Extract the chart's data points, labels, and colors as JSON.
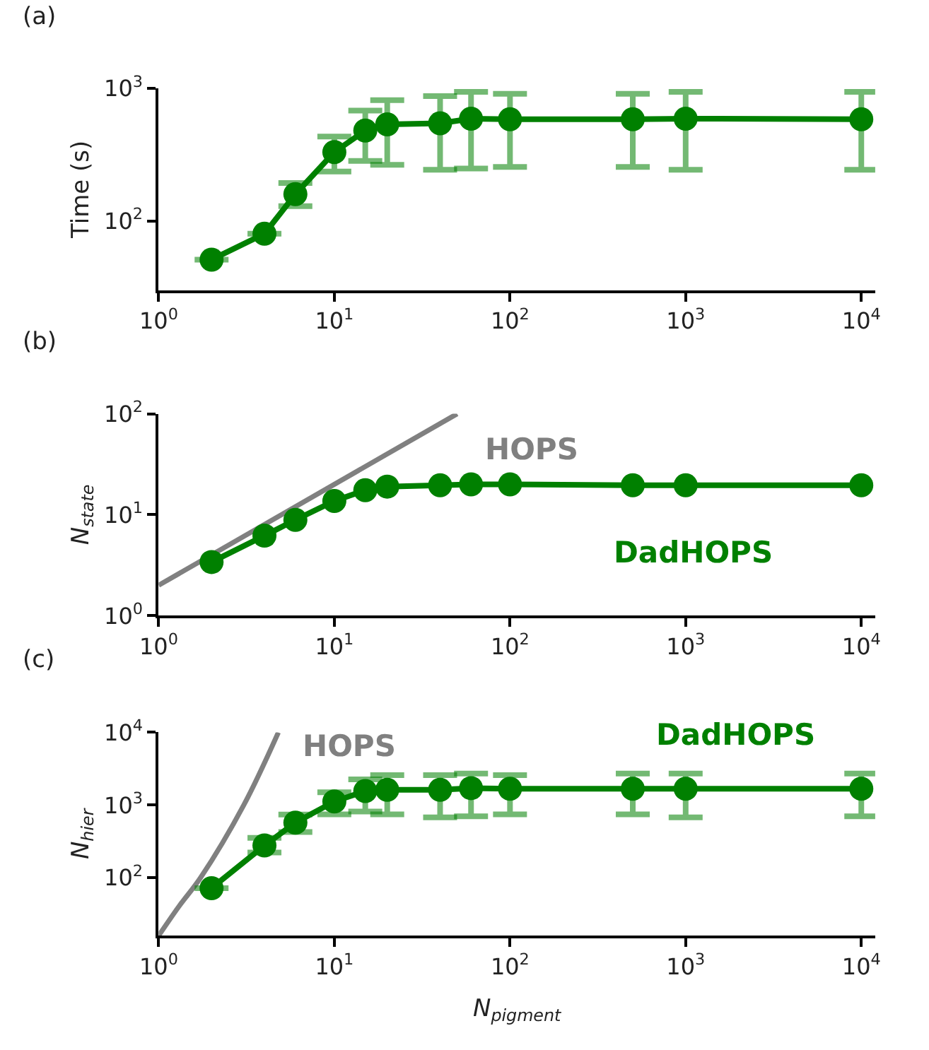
{
  "chart_data": [
    {
      "type": "line",
      "title": "(a)",
      "ylabel": "Time (s)",
      "log": "xy",
      "grid": false,
      "legend": false,
      "marker": "circle",
      "line_style": "solid",
      "xlim": [
        1,
        12000
      ],
      "ylim": [
        30,
        1000
      ],
      "xticks": [
        {
          "value": 1,
          "label": "10$^{0}$"
        },
        {
          "value": 10,
          "label": "10$^{1}$"
        },
        {
          "value": 100,
          "label": "10$^{2}$"
        },
        {
          "value": 1000,
          "label": "10$^{3}$"
        },
        {
          "value": 10000,
          "label": "10$^{4}$"
        }
      ],
      "yticks": [
        {
          "value": 100,
          "label": "10$^{2}$"
        },
        {
          "value": 1000,
          "label": "10$^{3}$"
        }
      ],
      "series": [
        {
          "color": "#008000",
          "x": [
            2,
            4,
            6,
            10,
            15,
            20,
            40,
            60,
            100,
            500,
            1000,
            10000
          ],
          "values": [
            51,
            80,
            159,
            330,
            480,
            535,
            545,
            590,
            585,
            585,
            590,
            585
          ],
          "errors": [
            null,
            null,
            [
              129,
              193
            ],
            [
              236,
              433
            ],
            [
              283,
              680
            ],
            [
              265,
              815
            ],
            [
              243,
              875
            ],
            [
              248,
              940
            ],
            [
              255,
              910
            ],
            [
              255,
              910
            ],
            [
              243,
              940
            ],
            [
              243,
              940
            ]
          ]
        }
      ]
    },
    {
      "type": "line",
      "title": "(b)",
      "ylabel": "N$_{state}$",
      "log": "xy",
      "grid": false,
      "legend": false,
      "marker": "circle",
      "line_style": "solid",
      "xlim": [
        1,
        12000
      ],
      "ylim": [
        1,
        100
      ],
      "xticks": [
        {
          "value": 1,
          "label": "10$^{0}$"
        },
        {
          "value": 10,
          "label": "10$^{1}$"
        },
        {
          "value": 100,
          "label": "10$^{2}$"
        },
        {
          "value": 1000,
          "label": "10$^{3}$"
        },
        {
          "value": 10000,
          "label": "10$^{4}$"
        }
      ],
      "yticks": [
        {
          "value": 1,
          "label": "10$^{0}$"
        },
        {
          "value": 10,
          "label": "10$^{1}$"
        },
        {
          "value": 100,
          "label": "10$^{2}$"
        }
      ],
      "series": [
        {
          "name": "HOPS",
          "color": "#808080",
          "marker": "none",
          "x": [
            1,
            50
          ],
          "values": [
            2,
            100
          ]
        },
        {
          "name": "DadHOPS",
          "color": "#008000",
          "x": [
            2,
            4,
            6,
            10,
            15,
            20,
            40,
            60,
            100,
            500,
            1000,
            10000
          ],
          "values": [
            3.4,
            6.2,
            8.9,
            13.7,
            17.5,
            19,
            19.6,
            20,
            20,
            19.6,
            19.6,
            19.6
          ]
        }
      ]
    },
    {
      "type": "line",
      "title": "(c)",
      "ylabel": "N$_{hier}$",
      "xlabel": "N$_{pigment}$",
      "log": "xy",
      "grid": false,
      "legend": false,
      "marker": "circle",
      "line_style": "solid",
      "xlim": [
        1,
        12000
      ],
      "ylim": [
        16,
        10000
      ],
      "xticks": [
        {
          "value": 1,
          "label": "10$^{0}$"
        },
        {
          "value": 10,
          "label": "10$^{1}$"
        },
        {
          "value": 100,
          "label": "10$^{2}$"
        },
        {
          "value": 1000,
          "label": "10$^{3}$"
        },
        {
          "value": 10000,
          "label": "10$^{4}$"
        }
      ],
      "yticks": [
        {
          "value": 100,
          "label": "10$^{2}$"
        },
        {
          "value": 1000,
          "label": "10$^{3}$"
        },
        {
          "value": 10000,
          "label": "10$^{4}$"
        }
      ],
      "series": [
        {
          "name": "HOPS",
          "color": "#808080",
          "marker": "none",
          "x": [
            1,
            1.3,
            1.73,
            3.05,
            4.8
          ],
          "values": [
            16,
            40,
            100,
            1000,
            10000
          ]
        },
        {
          "name": "DadHOPS",
          "color": "#008000",
          "x": [
            2,
            4,
            6,
            10,
            15,
            20,
            40,
            60,
            100,
            500,
            1000,
            10000
          ],
          "values": [
            72,
            278,
            573,
            1120,
            1560,
            1620,
            1620,
            1710,
            1680,
            1680,
            1680,
            1680
          ],
          "errors": [
            null,
            [
              222,
              355
            ],
            [
              425,
              740
            ],
            [
              745,
              1500
            ],
            [
              815,
              2260
            ],
            [
              745,
              2580
            ],
            [
              678,
              2580
            ],
            [
              700,
              2720
            ],
            [
              745,
              2580
            ],
            [
              745,
              2720
            ],
            [
              678,
              2720
            ],
            [
              700,
              2720
            ]
          ]
        }
      ]
    }
  ]
}
